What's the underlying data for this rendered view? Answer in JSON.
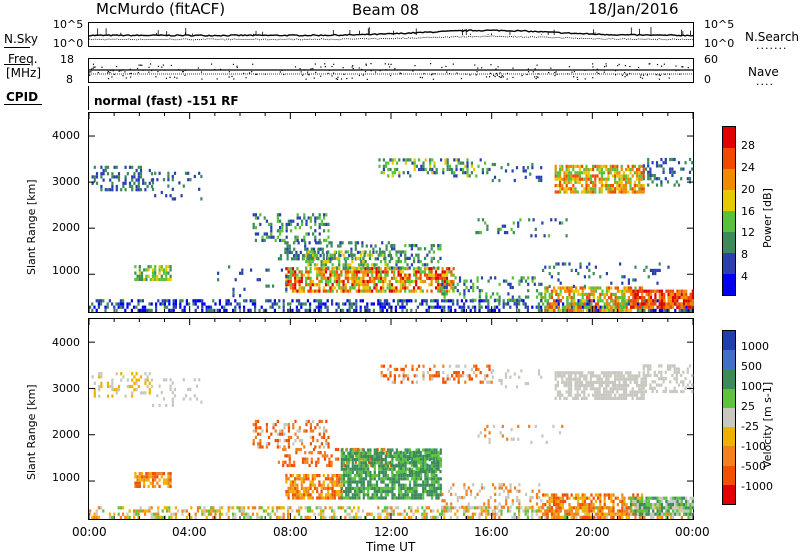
{
  "header": {
    "station": "McMurdo (fitACF)",
    "beam": "Beam 08",
    "date": "18/Jan/2016"
  },
  "noise_panel": {
    "left_label": "N.Sky",
    "right_label": "N.Search",
    "right_dots": ".......",
    "left_ticks": [
      "10^5",
      "10^0"
    ],
    "right_ticks": [
      "10^5",
      "10^0"
    ]
  },
  "freq_panel": {
    "left_label_1": "Freq.",
    "left_label_2": "[MHz]",
    "right_label": "Nave",
    "right_dots": "....",
    "left_ticks": [
      "18",
      "8"
    ],
    "right_ticks": [
      "60",
      "0"
    ]
  },
  "cpid": {
    "label": "CPID",
    "text": "normal (fast) -151 RF"
  },
  "power_panel": {
    "ylabel": "Slant Range [km]",
    "colorbar_label": "Power [dB]",
    "colorbar_ticks": [
      "28",
      "24",
      "20",
      "16",
      "12",
      "8",
      "4"
    ],
    "colors": [
      "#0000ee",
      "#2a3fb0",
      "#3a8a5a",
      "#56c23a",
      "#e8c800",
      "#f08a00",
      "#f04a00",
      "#e00000"
    ]
  },
  "velocity_panel": {
    "ylabel": "Slant Range [km]",
    "colorbar_label": "Velocity [m s-1]",
    "colorbar_ticks": [
      "1000",
      "500",
      "100",
      "25",
      "-25",
      "-100",
      "-500",
      "-1000"
    ],
    "colors": [
      "#1f3fb0",
      "#3f6fc8",
      "#3a8a5a",
      "#5cc43c",
      "#c8c8c0",
      "#f0b000",
      "#f08020",
      "#f05000",
      "#e00000"
    ]
  },
  "chart_data": {
    "type": "heatmap",
    "xlabel": "Time UT",
    "x_ticks": [
      "00:00",
      "04:00",
      "08:00",
      "12:00",
      "16:00",
      "20:00",
      "00:00"
    ],
    "y_ticks": [
      "1000",
      "2000",
      "3000",
      "4000"
    ],
    "ylim": [
      180,
      4500
    ],
    "xlim_hours": [
      0,
      24
    ],
    "series": [
      {
        "name": "Power [dB]",
        "range": [
          0,
          30
        ]
      },
      {
        "name": "Velocity [m s-1]",
        "range": [
          -1000,
          1000
        ]
      }
    ]
  }
}
